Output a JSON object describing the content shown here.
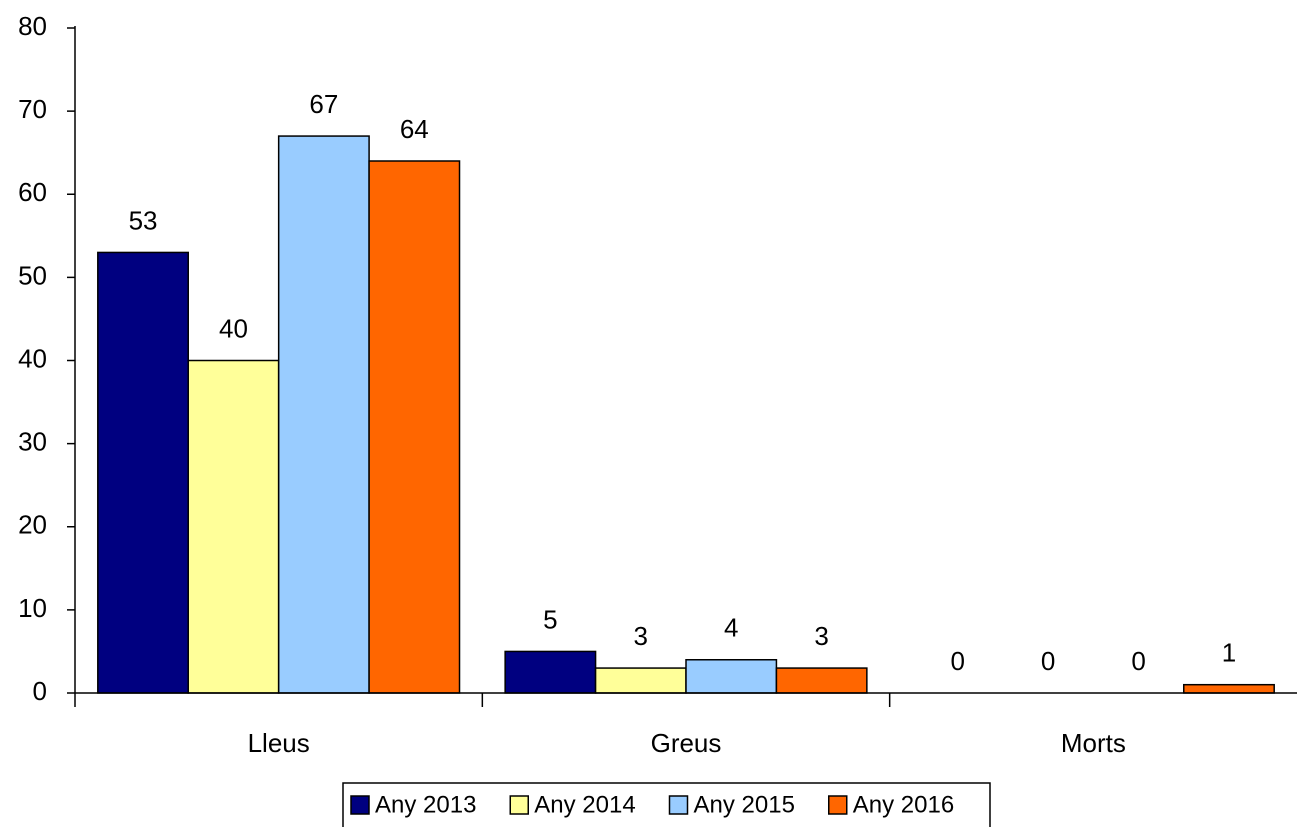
{
  "chart_data": {
    "type": "bar",
    "categories": [
      "Lleus",
      "Greus",
      "Morts"
    ],
    "series": [
      {
        "name": "Any 2013",
        "color": "#000080",
        "values": [
          53,
          5,
          0
        ]
      },
      {
        "name": "Any 2014",
        "color": "#ffff99",
        "values": [
          40,
          3,
          0
        ]
      },
      {
        "name": "Any 2015",
        "color": "#99ccff",
        "values": [
          67,
          4,
          0
        ]
      },
      {
        "name": "Any 2016",
        "color": "#ff6600",
        "values": [
          64,
          3,
          1
        ]
      }
    ],
    "ylim": [
      0,
      80
    ],
    "yticks": [
      0,
      10,
      20,
      30,
      40,
      50,
      60,
      70,
      80
    ],
    "grid": false,
    "legend": "bottom"
  }
}
